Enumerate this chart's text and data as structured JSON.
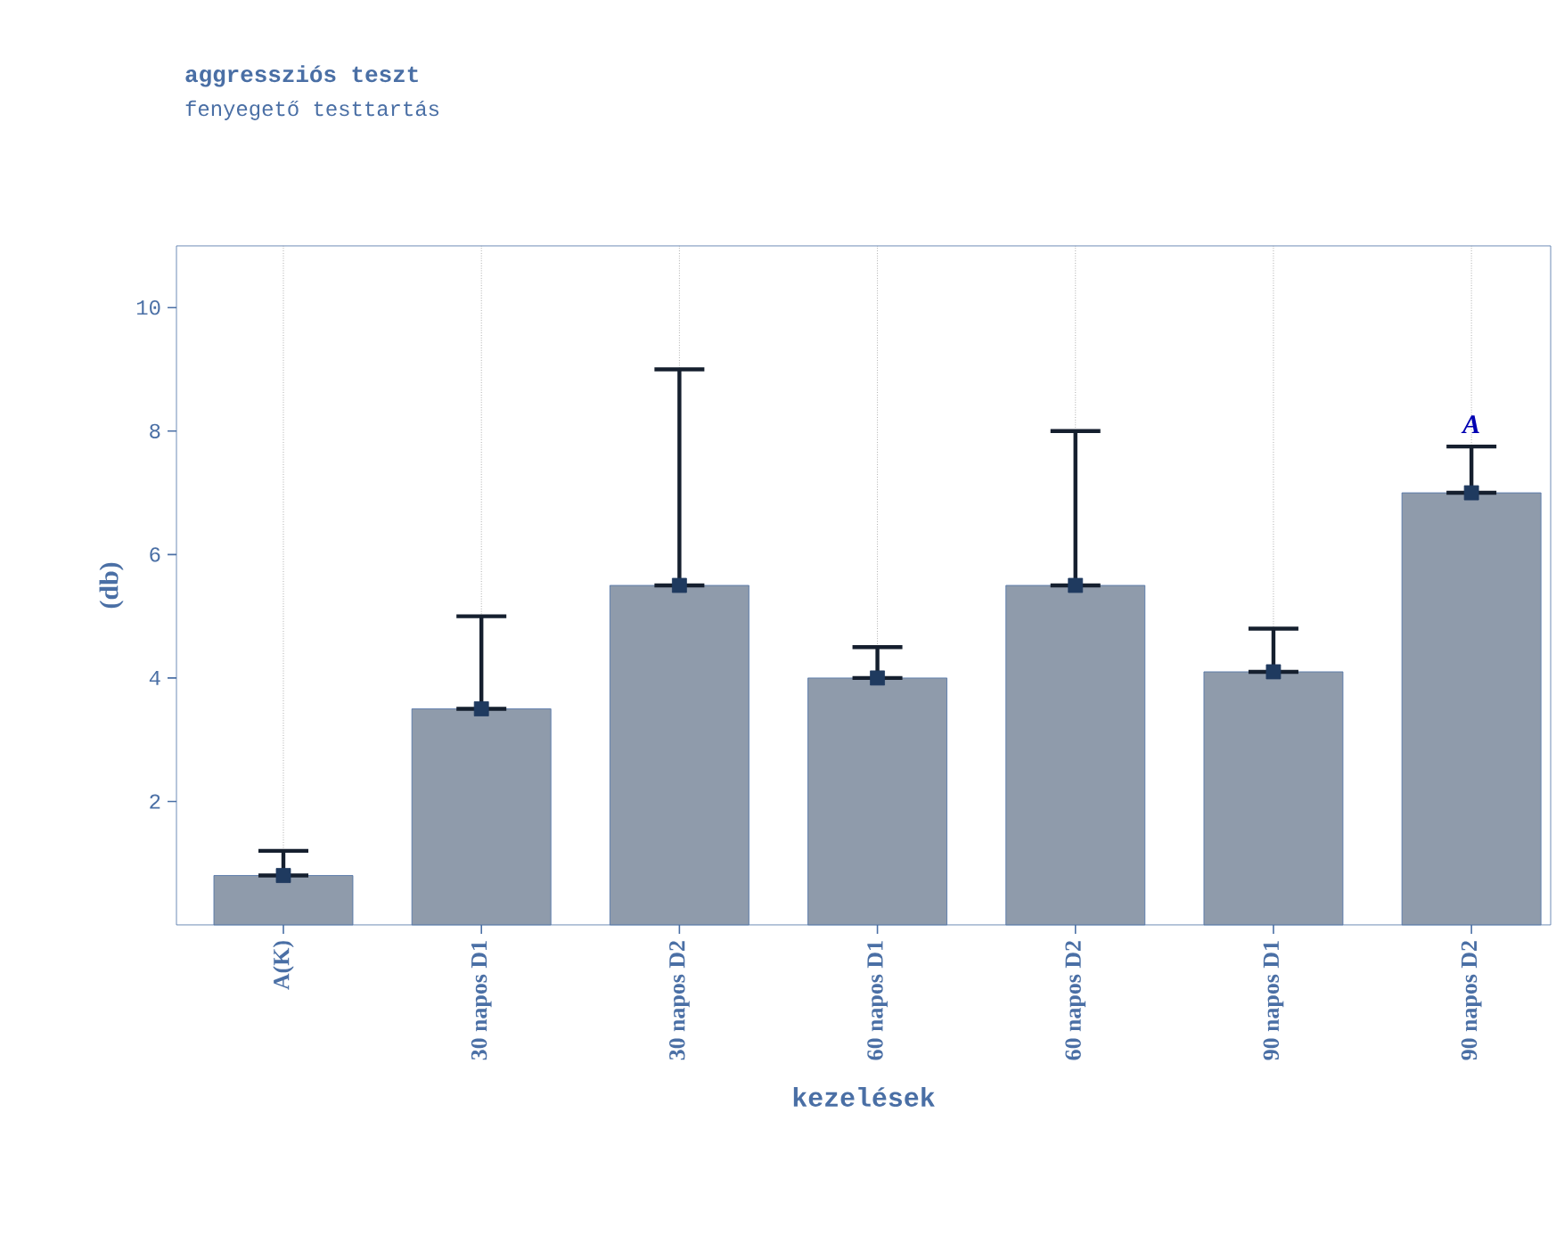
{
  "chart_data": {
    "type": "bar",
    "title": "aggressziós teszt",
    "subtitle": "fenyegető testtartás",
    "xlabel": "kezelések",
    "ylabel": "(db)",
    "categories": [
      "A(K)",
      "30 napos D1",
      "30 napos D2",
      "60 napos D1",
      "60 napos D2",
      "90 napos D1",
      "90 napos D2"
    ],
    "series": [
      {
        "color": "#8f9bab",
        "values": [
          0.8,
          3.5,
          5.5,
          4.0,
          5.5,
          4.1,
          7.0
        ],
        "errors": [
          [
            0.8,
            1.2
          ],
          [
            3.5,
            5.0
          ],
          [
            5.5,
            9.0
          ],
          [
            4.0,
            4.5
          ],
          [
            5.5,
            8.0
          ],
          [
            4.1,
            4.8
          ],
          [
            7.0,
            7.75
          ]
        ]
      },
      {
        "type": "scatter",
        "color": "#1f3a5f",
        "marker": "square",
        "x": [
          "A(K)",
          "30 napos D1",
          "30 napos D2",
          "60 napos D1",
          "60 napos D2",
          "90 napos D1",
          "90 napos D2"
        ],
        "values": [
          0.8,
          3.5,
          5.5,
          4.0,
          5.5,
          4.1,
          7.0
        ]
      }
    ],
    "grid": "x",
    "ylim": [
      0,
      11
    ],
    "yticks": [
      2,
      4,
      6,
      8,
      10
    ],
    "annotations": [
      "A"
    ]
  }
}
